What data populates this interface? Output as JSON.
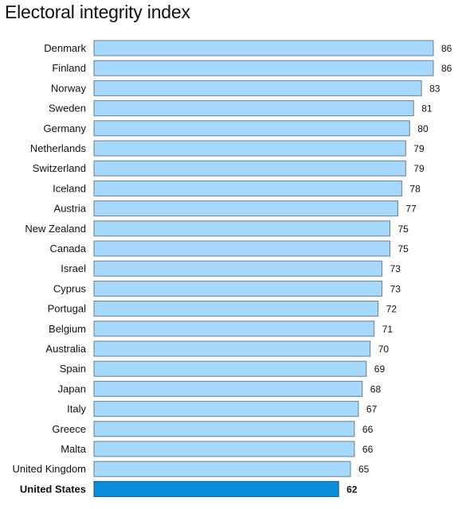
{
  "chart_data": {
    "type": "bar",
    "orientation": "horizontal",
    "title": "Electoral integrity index",
    "categories": [
      "Denmark",
      "Finland",
      "Norway",
      "Sweden",
      "Germany",
      "Netherlands",
      "Switzerland",
      "Iceland",
      "Austria",
      "New Zealand",
      "Canada",
      "Israel",
      "Cyprus",
      "Portugal",
      "Belgium",
      "Australia",
      "Spain",
      "Japan",
      "Italy",
      "Greece",
      "Malta",
      "United Kingdom",
      "United States"
    ],
    "values": [
      86,
      86,
      83,
      81,
      80,
      79,
      79,
      78,
      77,
      75,
      75,
      73,
      73,
      72,
      71,
      70,
      69,
      68,
      67,
      66,
      66,
      65,
      62
    ],
    "highlight": "United States",
    "colors": {
      "bar": "#a6d8fb",
      "bar_border": "#6c7f8c",
      "highlight": "#0a8fdc",
      "highlight_border": "#1c4f78"
    },
    "grid": false,
    "legend": "none"
  }
}
